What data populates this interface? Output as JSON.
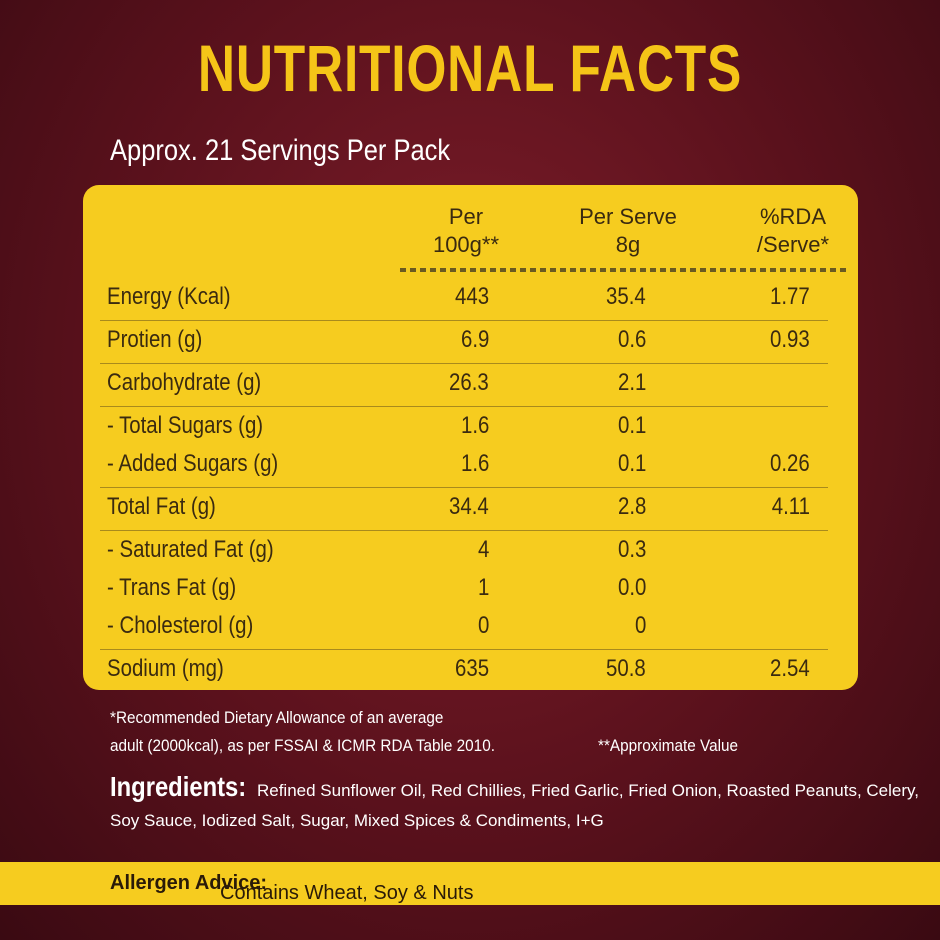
{
  "title": "NUTRITIONAL FACTS",
  "subtitle": "Approx. 21 Servings Per Pack",
  "table": {
    "headers": {
      "per_100g": [
        "Per",
        "100g**"
      ],
      "per_serve": [
        "Per Serve",
        "8g"
      ],
      "rda": [
        "%RDA",
        "/Serve*"
      ]
    },
    "groups": [
      [
        {
          "label": "Energy (Kcal)",
          "per_100g": "443",
          "per_serve": "35.4",
          "rda": "1.77"
        }
      ],
      [
        {
          "label": "Protien (g)",
          "per_100g": "6.9",
          "per_serve": "0.6",
          "rda": "0.93"
        }
      ],
      [
        {
          "label": "Carbohydrate (g)",
          "per_100g": "26.3",
          "per_serve": "2.1"
        }
      ],
      [
        {
          "label": "- Total Sugars (g)",
          "per_100g": "1.6",
          "per_serve": "0.1"
        },
        {
          "label": "- Added Sugars (g)",
          "per_100g": "1.6",
          "per_serve": "0.1",
          "rda": "0.26"
        }
      ],
      [
        {
          "label": "Total Fat (g)",
          "per_100g": "34.4",
          "per_serve": "2.8",
          "rda": "4.11"
        }
      ],
      [
        {
          "label": "- Saturated Fat (g)",
          "per_100g": "4",
          "per_serve": "0.3"
        },
        {
          "label": "- Trans Fat (g)",
          "per_100g": "1",
          "per_serve": "0.0"
        },
        {
          "label": "- Cholesterol (g)",
          "per_100g": "0",
          "per_serve": "0"
        }
      ],
      [
        {
          "label": "Sodium (mg)",
          "per_100g": "635",
          "per_serve": "50.8",
          "rda": "2.54"
        }
      ]
    ]
  },
  "footnote": {
    "line1": "*Recommended Dietary Allowance of an average",
    "line2": "adult (2000kcal), as per FSSAI & ICMR RDA Table 2010.",
    "approx": "**Approximate Value"
  },
  "ingredients": {
    "label": "Ingredients:",
    "text": "Refined Sunflower Oil, Red Chillies, Fried Garlic, Fried Onion, Roasted Peanuts, Celery, Soy Sauce, Iodized Salt, Sugar, Mixed Spices & Condiments, I+G"
  },
  "allergen": {
    "label": "Allergen Advice:",
    "text": "Contains Wheat, Soy & Nuts"
  }
}
